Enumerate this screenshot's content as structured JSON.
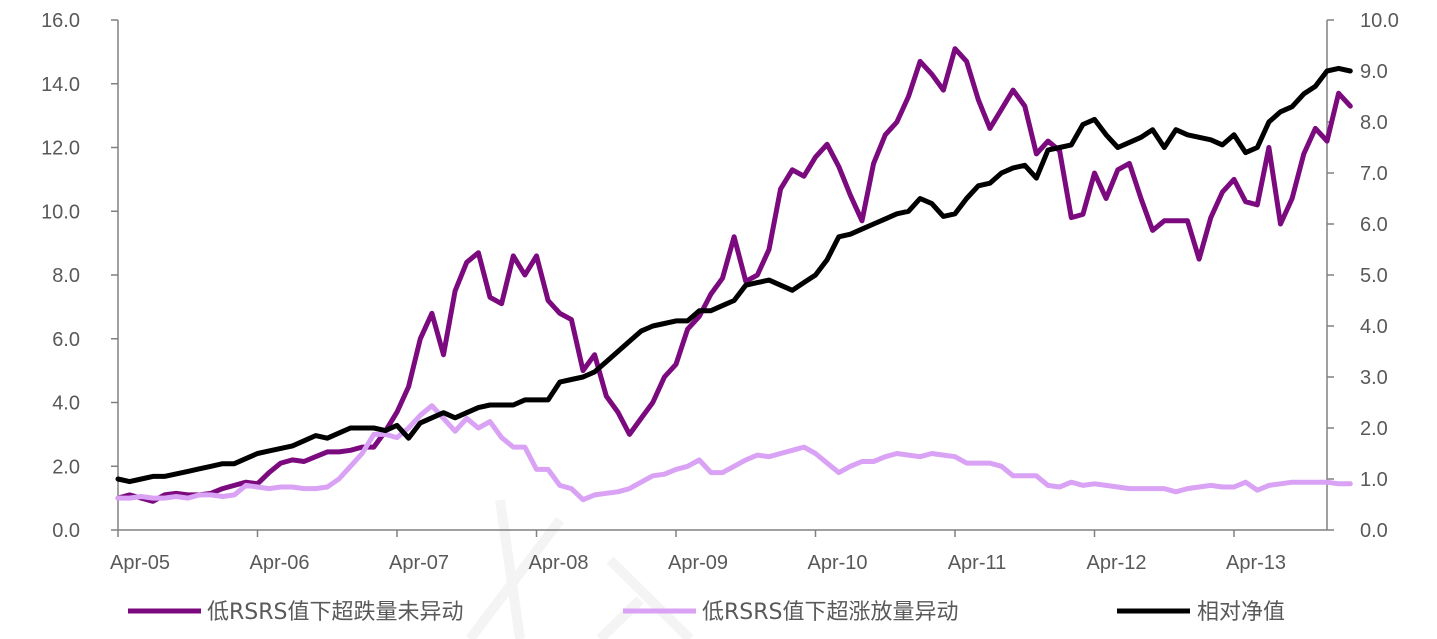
{
  "chart_data": {
    "type": "line",
    "x_tick_labels": [
      "Apr-05",
      "Apr-06",
      "Apr-07",
      "Apr-08",
      "Apr-09",
      "Apr-10",
      "Apr-11",
      "Apr-12",
      "Apr-13"
    ],
    "x_start": "2005-04",
    "left_axis": {
      "ylim": [
        0,
        16
      ],
      "ticks": [
        "0.0",
        "2.0",
        "4.0",
        "6.0",
        "8.0",
        "10.0",
        "12.0",
        "14.0",
        "16.0"
      ]
    },
    "right_axis": {
      "ylim": [
        0,
        10
      ],
      "ticks": [
        "0.0",
        "1.0",
        "2.0",
        "3.0",
        "4.0",
        "5.0",
        "6.0",
        "7.0",
        "8.0",
        "9.0",
        "10.0"
      ]
    },
    "grid": false,
    "legend_position": "bottom",
    "series": [
      {
        "name": "低RSRS值下超跌量未异动",
        "axis": "left",
        "color": "#7B0A7E",
        "values": [
          1.0,
          1.1,
          1.0,
          0.9,
          1.1,
          1.15,
          1.1,
          1.1,
          1.15,
          1.3,
          1.4,
          1.5,
          1.45,
          1.8,
          2.1,
          2.2,
          2.15,
          2.3,
          2.45,
          2.45,
          2.5,
          2.6,
          2.6,
          3.1,
          3.7,
          4.5,
          6.0,
          6.8,
          5.5,
          7.5,
          8.4,
          8.7,
          7.3,
          7.1,
          8.6,
          8.0,
          8.6,
          7.2,
          6.8,
          6.6,
          5.0,
          5.5,
          4.2,
          3.7,
          3.0,
          3.5,
          4.0,
          4.8,
          5.2,
          6.3,
          6.7,
          7.4,
          7.9,
          9.2,
          7.8,
          8.0,
          8.8,
          10.7,
          11.3,
          11.1,
          11.7,
          12.1,
          11.4,
          10.5,
          9.7,
          11.5,
          12.4,
          12.8,
          13.6,
          14.7,
          14.3,
          13.8,
          15.1,
          14.7,
          13.5,
          12.6,
          13.2,
          13.8,
          13.3,
          11.8,
          12.2,
          11.9,
          9.8,
          9.9,
          11.2,
          10.4,
          11.3,
          11.5,
          10.4,
          9.4,
          9.7,
          9.7,
          9.7,
          8.5,
          9.8,
          10.6,
          11.0,
          10.3,
          10.2,
          12.0,
          9.6,
          10.4,
          11.8,
          12.6,
          12.2,
          13.7,
          13.3
        ]
      },
      {
        "name": "低RSRS值下超涨放量异动",
        "axis": "left",
        "color": "#D9A2F4",
        "values": [
          1.0,
          1.0,
          1.05,
          1.0,
          1.0,
          1.05,
          1.0,
          1.1,
          1.1,
          1.05,
          1.1,
          1.4,
          1.35,
          1.3,
          1.35,
          1.35,
          1.3,
          1.3,
          1.35,
          1.6,
          2.0,
          2.4,
          3.0,
          3.0,
          2.9,
          3.2,
          3.6,
          3.9,
          3.5,
          3.1,
          3.5,
          3.2,
          3.4,
          2.9,
          2.6,
          2.6,
          1.9,
          1.9,
          1.4,
          1.3,
          0.95,
          1.1,
          1.15,
          1.2,
          1.3,
          1.5,
          1.7,
          1.75,
          1.9,
          2.0,
          2.2,
          1.8,
          1.8,
          2.0,
          2.2,
          2.35,
          2.3,
          2.4,
          2.5,
          2.6,
          2.4,
          2.1,
          1.8,
          2.0,
          2.15,
          2.15,
          2.3,
          2.4,
          2.35,
          2.3,
          2.4,
          2.35,
          2.3,
          2.1,
          2.1,
          2.1,
          2.0,
          1.7,
          1.7,
          1.7,
          1.4,
          1.35,
          1.5,
          1.4,
          1.45,
          1.4,
          1.35,
          1.3,
          1.3,
          1.3,
          1.3,
          1.2,
          1.3,
          1.35,
          1.4,
          1.35,
          1.35,
          1.5,
          1.25,
          1.4,
          1.45,
          1.5,
          1.5,
          1.5,
          1.5,
          1.45,
          1.45
        ]
      },
      {
        "name": "相对净值",
        "axis": "right",
        "color": "#000000",
        "values": [
          1.0,
          0.95,
          1.0,
          1.05,
          1.05,
          1.1,
          1.15,
          1.2,
          1.25,
          1.3,
          1.3,
          1.4,
          1.5,
          1.55,
          1.6,
          1.65,
          1.75,
          1.85,
          1.8,
          1.9,
          2.0,
          2.0,
          2.0,
          1.95,
          2.05,
          1.8,
          2.1,
          2.2,
          2.3,
          2.2,
          2.3,
          2.4,
          2.45,
          2.45,
          2.45,
          2.55,
          2.55,
          2.55,
          2.9,
          2.95,
          3.0,
          3.1,
          3.3,
          3.5,
          3.7,
          3.9,
          4.0,
          4.05,
          4.1,
          4.1,
          4.3,
          4.3,
          4.4,
          4.5,
          4.8,
          4.85,
          4.9,
          4.8,
          4.7,
          4.85,
          5.0,
          5.3,
          5.75,
          5.8,
          5.9,
          6.0,
          6.1,
          6.2,
          6.25,
          6.5,
          6.4,
          6.15,
          6.2,
          6.5,
          6.75,
          6.8,
          7.0,
          7.1,
          7.15,
          6.9,
          7.45,
          7.5,
          7.55,
          7.95,
          8.05,
          7.75,
          7.5,
          7.6,
          7.7,
          7.85,
          7.5,
          7.85,
          7.75,
          7.7,
          7.65,
          7.55,
          7.75,
          7.4,
          7.5,
          8.0,
          8.2,
          8.3,
          8.55,
          8.7,
          9.0,
          9.05,
          9.0
        ]
      }
    ]
  },
  "legend": {
    "items": [
      {
        "label": "低RSRS值下超跌量未异动",
        "color": "#7B0A7E"
      },
      {
        "label": "低RSRS值下超涨放量异动",
        "color": "#D9A2F4"
      },
      {
        "label": "相对净值",
        "color": "#000000"
      }
    ]
  }
}
